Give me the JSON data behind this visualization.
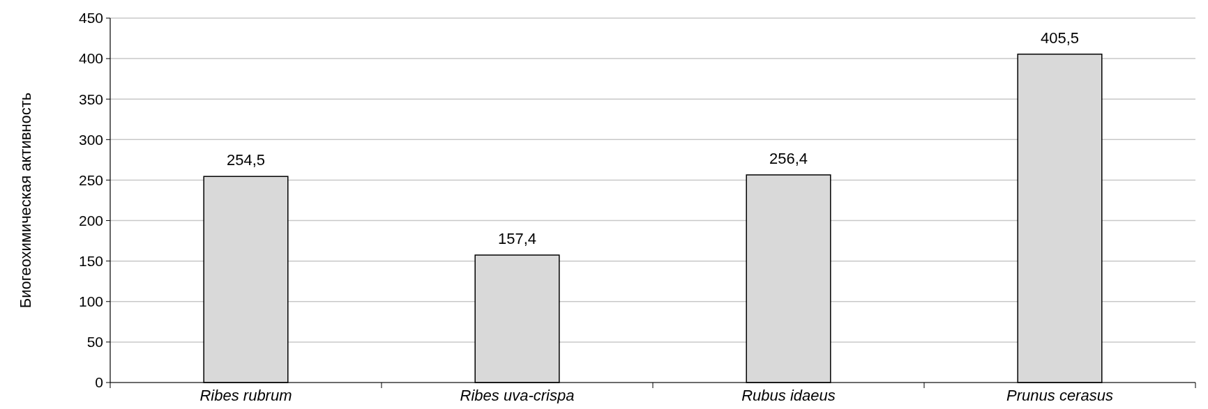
{
  "chart_data": {
    "type": "bar",
    "ylabel": "Биогеохимическая активность",
    "categories": [
      "Ribes rubrum",
      "Ribes uva-crispa",
      "Rubus idaeus",
      "Prunus cerasus"
    ],
    "values": [
      254.5,
      157.4,
      256.4,
      405.5
    ],
    "value_labels": [
      "254,5",
      "157,4",
      "256,4",
      "405,5"
    ],
    "color": "#d9d9d9",
    "ylim": [
      0,
      450
    ],
    "yticks": [
      0,
      50,
      100,
      150,
      200,
      250,
      300,
      350,
      400,
      450
    ],
    "grid": "y"
  }
}
